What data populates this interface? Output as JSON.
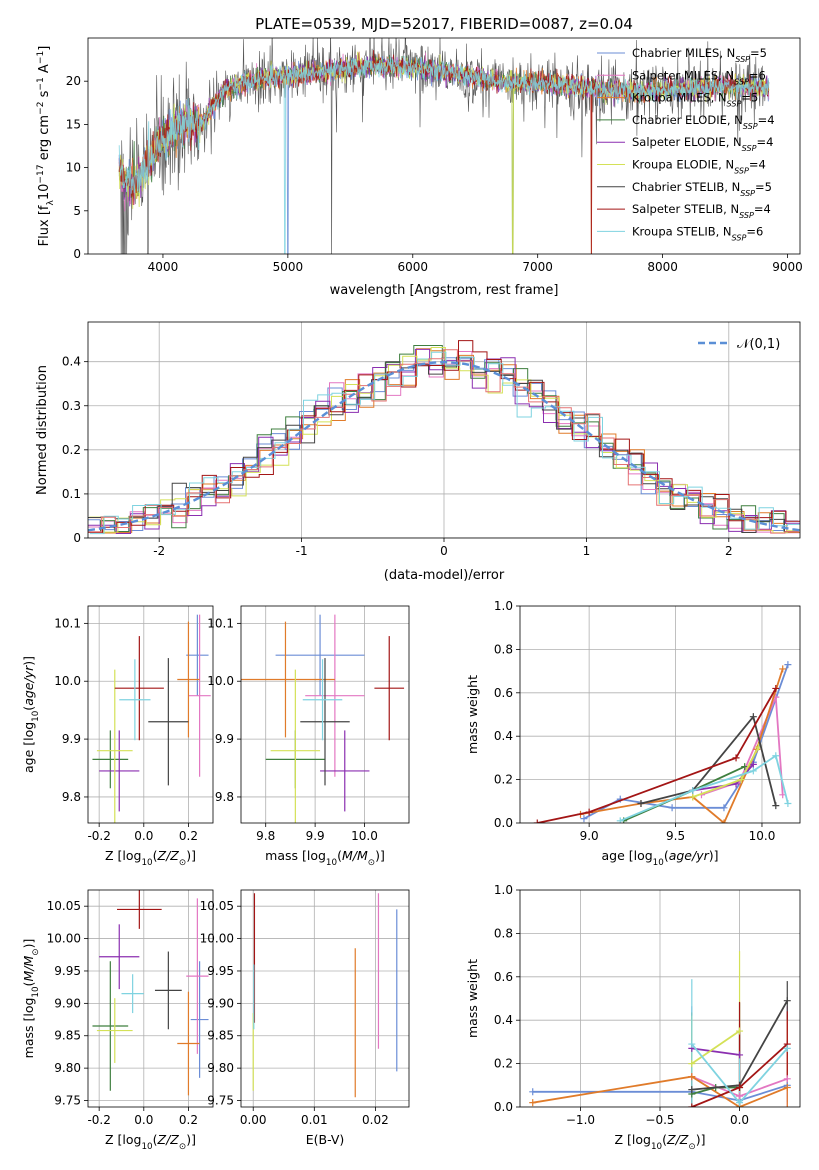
{
  "chart_data": [
    {
      "type": "line",
      "title": "PLATE=0539, MJD=52017, FIBERID=0087, z=0.04",
      "xlabel": "wavelength [Angstrom, rest frame]",
      "ylabel": "Flux [f_λ10^-17 erg cm^-2 s^-1 A^-1]",
      "xlim": [
        3400,
        9100
      ],
      "ylim": [
        0,
        25
      ],
      "xticks": [
        4000,
        5000,
        6000,
        7000,
        8000,
        9000
      ],
      "yticks": [
        0,
        5,
        10,
        15,
        20
      ],
      "grid": false,
      "legend_position": "top-right",
      "series": [
        {
          "name": "Chabrier MILES, N_SSP=5",
          "color": "#6b8dd6"
        },
        {
          "name": "Salpeter MILES, N_SSP=6",
          "color": "#e377c2"
        },
        {
          "name": "Kroupa MILES, N_SSP=5",
          "color": "#e07b2a"
        },
        {
          "name": "Chabrier ELODIE, N_SSP=4",
          "color": "#3f7f3f"
        },
        {
          "name": "Salpeter ELODIE, N_SSP=4",
          "color": "#8b2fb0"
        },
        {
          "name": "Kroupa ELODIE, N_SSP=4",
          "color": "#d4e157"
        },
        {
          "name": "Chabrier STELIB, N_SSP=5",
          "color": "#444444"
        },
        {
          "name": "Salpeter STELIB, N_SSP=4",
          "color": "#a31515"
        },
        {
          "name": "Kroupa STELIB, N_SSP=6",
          "color": "#7fd3e0"
        }
      ],
      "data_profile": {
        "spectrum_start": 3650,
        "spectrum_end": 8850,
        "x": [
          3650,
          3700,
          3800,
          3900,
          4000,
          4100,
          4200,
          4300,
          4400,
          4500,
          4700,
          4900,
          5100,
          5300,
          5500,
          5700,
          6000,
          6300,
          6500,
          6700,
          7000,
          7300,
          7500,
          7800,
          8000,
          8300,
          8600,
          8850
        ],
        "y": [
          10,
          8,
          8.5,
          11,
          13.5,
          14.5,
          15.5,
          15,
          17,
          19,
          20,
          20.5,
          20.8,
          21,
          21.5,
          21.8,
          21.5,
          21,
          20.5,
          20,
          19.8,
          19.5,
          19,
          18.8,
          19,
          19.2,
          19.5,
          19.2
        ]
      }
    },
    {
      "type": "step",
      "xlabel": "(data-model)/error",
      "ylabel": "Normed distribution",
      "xlim": [
        -2.5,
        2.5
      ],
      "ylim": [
        0,
        0.49
      ],
      "xticks": [
        -2,
        -1,
        0,
        1,
        2
      ],
      "yticks": [
        0.0,
        0.1,
        0.2,
        0.3,
        0.4
      ],
      "grid": true,
      "legend": "𝒩(0,1)",
      "legend_position": "top-right",
      "reference_curve": {
        "mean": 0,
        "std": 1,
        "color": "#5b8fd6"
      },
      "bin_width": 0.1,
      "series_colors": [
        "#6b8dd6",
        "#e377c2",
        "#e07b2a",
        "#3f7f3f",
        "#8b2fb0",
        "#d4e157",
        "#444444",
        "#a31515",
        "#7fd3e0",
        "#e57373"
      ]
    },
    {
      "type": "scatter",
      "xlabel": "Z [log10(Z/Z⊙)]",
      "ylabel": "age [log10(age/yr)]",
      "xlim": [
        -0.25,
        0.31
      ],
      "ylim": [
        9.755,
        10.13
      ],
      "xticks": [
        "-0.2",
        "0.0",
        "0.2"
      ],
      "xtick_values": [
        -0.2,
        0.0,
        0.2
      ],
      "yticks": [
        "9.8",
        "9.9",
        "10.0",
        "10.1"
      ],
      "ytick_values": [
        9.8,
        9.9,
        10.0,
        10.1
      ],
      "grid": true,
      "points": [
        {
          "x": 0.24,
          "y": 10.045,
          "xerr": 0.05,
          "yerr": 0.07,
          "color": "#6b8dd6"
        },
        {
          "x": 0.25,
          "y": 9.975,
          "xerr": 0.05,
          "yerr": 0.14,
          "color": "#e377c2"
        },
        {
          "x": 0.2,
          "y": 10.003,
          "xerr": 0.05,
          "yerr": 0.1,
          "color": "#e07b2a"
        },
        {
          "x": -0.15,
          "y": 9.865,
          "xerr": 0.08,
          "yerr": 0.05,
          "color": "#3f7f3f"
        },
        {
          "x": -0.11,
          "y": 9.845,
          "xerr": 0.09,
          "yerr": 0.07,
          "color": "#8b2fb0"
        },
        {
          "x": -0.13,
          "y": 9.88,
          "xerr": 0.08,
          "yerr": 0.14,
          "color": "#d4e157"
        },
        {
          "x": 0.11,
          "y": 9.93,
          "xerr": 0.09,
          "yerr": 0.11,
          "color": "#444444"
        },
        {
          "x": -0.02,
          "y": 9.988,
          "xerr": 0.11,
          "yerr": 0.09,
          "color": "#a31515"
        },
        {
          "x": -0.04,
          "y": 9.968,
          "xerr": 0.07,
          "yerr": 0.07,
          "color": "#7fd3e0"
        }
      ]
    },
    {
      "type": "scatter",
      "xlabel": "mass [log10(M/M⊙)]",
      "xlim": [
        9.75,
        10.09
      ],
      "ylim": [
        9.755,
        10.13
      ],
      "xticks": [
        "9.8",
        "9.9",
        "10.0"
      ],
      "xtick_values": [
        9.8,
        9.9,
        10.0
      ],
      "yticks": [
        "9.8",
        "9.9",
        "10.0",
        "10.1"
      ],
      "ytick_values": [
        9.8,
        9.9,
        10.0,
        10.1
      ],
      "grid": true,
      "points": [
        {
          "x": 9.91,
          "y": 10.045,
          "xerr": 0.09,
          "yerr": 0.07,
          "color": "#6b8dd6"
        },
        {
          "x": 9.94,
          "y": 9.975,
          "xerr": 0.06,
          "yerr": 0.14,
          "color": "#e377c2"
        },
        {
          "x": 9.84,
          "y": 10.003,
          "xerr": 0.1,
          "yerr": 0.1,
          "color": "#e07b2a"
        },
        {
          "x": 9.86,
          "y": 9.865,
          "xerr": 0.06,
          "yerr": 0.05,
          "color": "#3f7f3f"
        },
        {
          "x": 9.96,
          "y": 9.845,
          "xerr": 0.05,
          "yerr": 0.07,
          "color": "#8b2fb0"
        },
        {
          "x": 9.86,
          "y": 9.88,
          "xerr": 0.05,
          "yerr": 0.14,
          "color": "#d4e157"
        },
        {
          "x": 9.92,
          "y": 9.93,
          "xerr": 0.05,
          "yerr": 0.11,
          "color": "#444444"
        },
        {
          "x": 10.05,
          "y": 9.988,
          "xerr": 0.03,
          "yerr": 0.09,
          "color": "#a31515"
        },
        {
          "x": 9.915,
          "y": 9.968,
          "xerr": 0.04,
          "yerr": 0.07,
          "color": "#7fd3e0"
        }
      ]
    },
    {
      "type": "line",
      "xlabel": "age [log10(age/yr)]",
      "ylabel": "mass weight",
      "xlim": [
        8.6,
        10.22
      ],
      "ylim": [
        0,
        1.0
      ],
      "xticks": [
        "9.0",
        "9.5",
        "10.0"
      ],
      "xtick_values": [
        9.0,
        9.5,
        10.0
      ],
      "yticks": [
        "0.0",
        "0.2",
        "0.4",
        "0.6",
        "0.8",
        "1.0"
      ],
      "ytick_values": [
        0.0,
        0.2,
        0.4,
        0.6,
        0.8,
        1.0
      ],
      "grid": true,
      "series": [
        {
          "color": "#6b8dd6",
          "x": [
            8.97,
            9.18,
            9.48,
            9.78,
            9.95,
            10.15
          ],
          "y": [
            0.02,
            0.11,
            0.07,
            0.07,
            0.28,
            0.73
          ]
        },
        {
          "color": "#e377c2",
          "x": [
            9.65,
            9.87,
            10.08,
            10.12
          ],
          "y": [
            0.13,
            0.19,
            0.58,
            0.13
          ]
        },
        {
          "color": "#e07b2a",
          "x": [
            8.95,
            9.3,
            9.6,
            9.78,
            9.97,
            10.12
          ],
          "y": [
            0.04,
            0.09,
            0.12,
            0.0,
            0.34,
            0.71
          ]
        },
        {
          "color": "#3f7f3f",
          "x": [
            9.2,
            9.6,
            9.9
          ],
          "y": [
            0.01,
            0.15,
            0.26
          ]
        },
        {
          "color": "#8b2fb0",
          "x": [
            9.6,
            9.85,
            9.95
          ],
          "y": [
            0.15,
            0.18,
            0.27
          ]
        },
        {
          "color": "#d4e157",
          "x": [
            9.6,
            9.88,
            9.98
          ],
          "y": [
            0.12,
            0.2,
            0.35
          ]
        },
        {
          "color": "#444444",
          "x": [
            9.3,
            9.6,
            9.95,
            10.08
          ],
          "y": [
            0.09,
            0.15,
            0.49,
            0.08
          ]
        },
        {
          "color": "#a31515",
          "x": [
            8.7,
            9.0,
            9.85,
            10.08
          ],
          "y": [
            0.0,
            0.05,
            0.3,
            0.62
          ]
        },
        {
          "color": "#7fd3e0",
          "x": [
            9.18,
            9.6,
            9.95,
            10.08,
            10.15
          ],
          "y": [
            0.01,
            0.15,
            0.24,
            0.31,
            0.09
          ]
        }
      ]
    },
    {
      "type": "scatter",
      "xlabel": "Z [log10(Z/Z⊙)]",
      "ylabel": "mass [log10(M/M⊙)]",
      "xlim": [
        -0.25,
        0.31
      ],
      "ylim": [
        9.74,
        10.075
      ],
      "xticks": [
        "-0.2",
        "0.0",
        "0.2"
      ],
      "xtick_values": [
        -0.2,
        0.0,
        0.2
      ],
      "yticks": [
        "9.75",
        "9.80",
        "9.85",
        "9.90",
        "9.95",
        "10.00",
        "10.05"
      ],
      "ytick_values": [
        9.75,
        9.8,
        9.85,
        9.9,
        9.95,
        10.0,
        10.05
      ],
      "grid": true,
      "points": [
        {
          "x": 0.25,
          "y": 9.875,
          "xerr": 0.04,
          "yerr": 0.09,
          "color": "#6b8dd6"
        },
        {
          "x": 0.24,
          "y": 9.942,
          "xerr": 0.05,
          "yerr": 0.12,
          "color": "#e377c2"
        },
        {
          "x": 0.2,
          "y": 9.838,
          "xerr": 0.05,
          "yerr": 0.08,
          "color": "#e07b2a"
        },
        {
          "x": -0.15,
          "y": 9.865,
          "xerr": 0.08,
          "yerr": 0.1,
          "color": "#3f7f3f"
        },
        {
          "x": -0.11,
          "y": 9.972,
          "xerr": 0.09,
          "yerr": 0.05,
          "color": "#8b2fb0"
        },
        {
          "x": -0.13,
          "y": 9.858,
          "xerr": 0.08,
          "yerr": 0.05,
          "color": "#d4e157"
        },
        {
          "x": 0.11,
          "y": 9.92,
          "xerr": 0.06,
          "yerr": 0.06,
          "color": "#444444"
        },
        {
          "x": -0.02,
          "y": 10.045,
          "xerr": 0.1,
          "yerr": 0.03,
          "color": "#a31515"
        },
        {
          "x": -0.05,
          "y": 9.915,
          "xerr": 0.05,
          "yerr": 0.03,
          "color": "#7fd3e0"
        }
      ]
    },
    {
      "type": "scatter",
      "xlabel": "E(B-V)",
      "xlim": [
        -0.002,
        0.0255
      ],
      "ylim": [
        9.74,
        10.075
      ],
      "xticks": [
        "0.00",
        "0.01",
        "0.02"
      ],
      "xtick_values": [
        0.0,
        0.01,
        0.02
      ],
      "yticks": [
        "9.75",
        "9.80",
        "9.85",
        "9.90",
        "9.95",
        "10.00",
        "10.05"
      ],
      "ytick_values": [
        9.75,
        9.8,
        9.85,
        9.9,
        9.95,
        10.0,
        10.05
      ],
      "grid": true,
      "points": [
        {
          "x": 0.0235,
          "y": 9.92,
          "yerr": 0.125,
          "color": "#6b8dd6"
        },
        {
          "x": 0.0205,
          "y": 9.95,
          "yerr": 0.12,
          "color": "#e377c2"
        },
        {
          "x": 0.0167,
          "y": 9.87,
          "yerr": 0.115,
          "color": "#e07b2a"
        },
        {
          "x": 0.0,
          "y": 9.825,
          "yerr": 0.06,
          "color": "#d4e157"
        },
        {
          "x": 0.0002,
          "y": 9.97,
          "yerr": 0.1,
          "color": "#a31515"
        },
        {
          "x": 0.0001,
          "y": 9.91,
          "yerr": 0.05,
          "color": "#7fd3e0"
        }
      ]
    },
    {
      "type": "line",
      "xlabel": "Z [log10(Z/Z⊙)]",
      "ylabel": "mass weight",
      "xlim": [
        -1.38,
        0.38
      ],
      "ylim": [
        0,
        1.0
      ],
      "xticks": [
        "−1.0",
        "−0.5",
        "0.0"
      ],
      "xtick_values": [
        -1.0,
        -0.5,
        0.0
      ],
      "yticks": [
        "0.0",
        "0.2",
        "0.4",
        "0.6",
        "0.8",
        "1.0"
      ],
      "ytick_values": [
        0.0,
        0.2,
        0.4,
        0.6,
        0.8,
        1.0
      ],
      "grid": true,
      "series": [
        {
          "color": "#6b8dd6",
          "x": [
            -1.3,
            -0.3,
            0.0,
            0.3
          ],
          "y": [
            0.07,
            0.07,
            0.03,
            0.1
          ]
        },
        {
          "color": "#e377c2",
          "x": [
            -0.3,
            0.0,
            0.3
          ],
          "y": [
            0.14,
            0.05,
            0.13
          ]
        },
        {
          "color": "#e07b2a",
          "x": [
            -1.3,
            -0.3,
            0.0,
            0.3
          ],
          "y": [
            0.02,
            0.14,
            0.0,
            0.09
          ]
        },
        {
          "color": "#3f7f3f",
          "x": [
            -0.3,
            -0.15,
            0.0
          ],
          "y": [
            0.06,
            0.09,
            0.09
          ]
        },
        {
          "color": "#8b2fb0",
          "x": [
            -0.3,
            0.0
          ],
          "y": [
            0.27,
            0.24
          ]
        },
        {
          "color": "#d4e157",
          "x": [
            -0.3,
            0.0
          ],
          "y": [
            0.2,
            0.35
          ]
        },
        {
          "color": "#444444",
          "x": [
            -0.3,
            0.0,
            0.3
          ],
          "y": [
            0.08,
            0.1,
            0.49
          ]
        },
        {
          "color": "#a31515",
          "x": [
            -0.3,
            0.0,
            0.3
          ],
          "y": [
            0.0,
            0.09,
            0.29
          ]
        },
        {
          "color": "#7fd3e0",
          "x": [
            -0.3,
            0.0,
            0.3
          ],
          "y": [
            0.29,
            0.02,
            0.27
          ]
        }
      ],
      "vertical_lines_at_x": [
        -0.3,
        0.0,
        0.3
      ]
    }
  ]
}
